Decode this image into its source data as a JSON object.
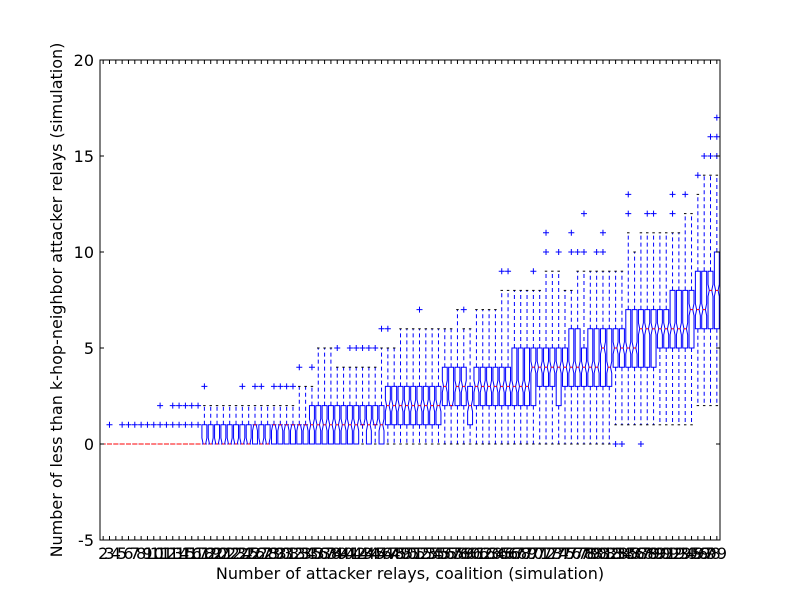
{
  "chart_data": {
    "type": "box",
    "title": "",
    "xlabel": "Number of attacker relays, coalition (simulation)",
    "ylabel": "Number of less than k-hop-neighbor attacker relays (simulation)",
    "ylim": [
      -5,
      20
    ],
    "yticks": [
      -5,
      0,
      5,
      10,
      15,
      20
    ],
    "x_first": 2,
    "x_last": 99,
    "legend": "none",
    "grid": false,
    "notched": true,
    "colors": {
      "box": "#0000ff",
      "median": "#ff0000",
      "flier": "#0000ff",
      "whisker": "#0000ff"
    },
    "boxes": [
      {
        "x": 2,
        "q1": 0,
        "med": 0,
        "q3": 0,
        "lo": 0,
        "hi": 0,
        "fliers": []
      },
      {
        "x": 3,
        "q1": 0,
        "med": 0,
        "q3": 0,
        "lo": 0,
        "hi": 0,
        "fliers": [
          1
        ]
      },
      {
        "x": 4,
        "q1": 0,
        "med": 0,
        "q3": 0,
        "lo": 0,
        "hi": 0,
        "fliers": []
      },
      {
        "x": 5,
        "q1": 0,
        "med": 0,
        "q3": 0,
        "lo": 0,
        "hi": 0,
        "fliers": [
          1
        ]
      },
      {
        "x": 6,
        "q1": 0,
        "med": 0,
        "q3": 0,
        "lo": 0,
        "hi": 0,
        "fliers": [
          1
        ]
      },
      {
        "x": 7,
        "q1": 0,
        "med": 0,
        "q3": 0,
        "lo": 0,
        "hi": 0,
        "fliers": [
          1
        ]
      },
      {
        "x": 8,
        "q1": 0,
        "med": 0,
        "q3": 0,
        "lo": 0,
        "hi": 0,
        "fliers": [
          1
        ]
      },
      {
        "x": 9,
        "q1": 0,
        "med": 0,
        "q3": 0,
        "lo": 0,
        "hi": 0,
        "fliers": [
          1
        ]
      },
      {
        "x": 10,
        "q1": 0,
        "med": 0,
        "q3": 0,
        "lo": 0,
        "hi": 0,
        "fliers": [
          1
        ]
      },
      {
        "x": 11,
        "q1": 0,
        "med": 0,
        "q3": 0,
        "lo": 0,
        "hi": 0,
        "fliers": [
          1,
          2
        ]
      },
      {
        "x": 12,
        "q1": 0,
        "med": 0,
        "q3": 0,
        "lo": 0,
        "hi": 0,
        "fliers": [
          1
        ]
      },
      {
        "x": 13,
        "q1": 0,
        "med": 0,
        "q3": 0,
        "lo": 0,
        "hi": 0,
        "fliers": [
          1,
          2
        ]
      },
      {
        "x": 14,
        "q1": 0,
        "med": 0,
        "q3": 0,
        "lo": 0,
        "hi": 0,
        "fliers": [
          1,
          2
        ]
      },
      {
        "x": 15,
        "q1": 0,
        "med": 0,
        "q3": 0,
        "lo": 0,
        "hi": 0,
        "fliers": [
          1,
          2
        ]
      },
      {
        "x": 16,
        "q1": 0,
        "med": 0,
        "q3": 0,
        "lo": 0,
        "hi": 0,
        "fliers": [
          1,
          2
        ]
      },
      {
        "x": 17,
        "q1": 0,
        "med": 0,
        "q3": 0,
        "lo": 0,
        "hi": 0,
        "fliers": [
          1,
          2
        ]
      },
      {
        "x": 18,
        "q1": 0,
        "med": 0,
        "q3": 1,
        "lo": 0,
        "hi": 2,
        "fliers": [
          3
        ]
      },
      {
        "x": 19,
        "q1": 0,
        "med": 0,
        "q3": 1,
        "lo": 0,
        "hi": 2,
        "fliers": []
      },
      {
        "x": 20,
        "q1": 0,
        "med": 0,
        "q3": 1,
        "lo": 0,
        "hi": 2,
        "fliers": []
      },
      {
        "x": 21,
        "q1": 0,
        "med": 0,
        "q3": 1,
        "lo": 0,
        "hi": 2,
        "fliers": []
      },
      {
        "x": 22,
        "q1": 0,
        "med": 0,
        "q3": 1,
        "lo": 0,
        "hi": 2,
        "fliers": []
      },
      {
        "x": 23,
        "q1": 0,
        "med": 0,
        "q3": 1,
        "lo": 0,
        "hi": 2,
        "fliers": []
      },
      {
        "x": 24,
        "q1": 0,
        "med": 0,
        "q3": 1,
        "lo": 0,
        "hi": 2,
        "fliers": [
          3
        ]
      },
      {
        "x": 25,
        "q1": 0,
        "med": 0,
        "q3": 1,
        "lo": 0,
        "hi": 2,
        "fliers": []
      },
      {
        "x": 26,
        "q1": 0,
        "med": 1,
        "q3": 1,
        "lo": 0,
        "hi": 2,
        "fliers": [
          3
        ]
      },
      {
        "x": 27,
        "q1": 0,
        "med": 0,
        "q3": 1,
        "lo": 0,
        "hi": 2,
        "fliers": [
          3
        ]
      },
      {
        "x": 28,
        "q1": 0,
        "med": 0,
        "q3": 1,
        "lo": 0,
        "hi": 2,
        "fliers": []
      },
      {
        "x": 29,
        "q1": 0,
        "med": 1,
        "q3": 1,
        "lo": 0,
        "hi": 2,
        "fliers": [
          3
        ]
      },
      {
        "x": 30,
        "q1": 0,
        "med": 1,
        "q3": 1,
        "lo": 0,
        "hi": 2,
        "fliers": [
          3
        ]
      },
      {
        "x": 31,
        "q1": 0,
        "med": 1,
        "q3": 1,
        "lo": 0,
        "hi": 2,
        "fliers": [
          3
        ]
      },
      {
        "x": 32,
        "q1": 0,
        "med": 1,
        "q3": 1,
        "lo": 0,
        "hi": 2,
        "fliers": [
          3
        ]
      },
      {
        "x": 33,
        "q1": 0,
        "med": 1,
        "q3": 1,
        "lo": 0,
        "hi": 3,
        "fliers": [
          4
        ]
      },
      {
        "x": 34,
        "q1": 0,
        "med": 1,
        "q3": 1,
        "lo": 0,
        "hi": 3,
        "fliers": []
      },
      {
        "x": 35,
        "q1": 0,
        "med": 1,
        "q3": 2,
        "lo": 0,
        "hi": 3,
        "fliers": [
          4
        ]
      },
      {
        "x": 36,
        "q1": 0,
        "med": 1,
        "q3": 2,
        "lo": 0,
        "hi": 5,
        "fliers": []
      },
      {
        "x": 37,
        "q1": 0,
        "med": 1,
        "q3": 2,
        "lo": 0,
        "hi": 5,
        "fliers": []
      },
      {
        "x": 38,
        "q1": 0,
        "med": 1,
        "q3": 2,
        "lo": 0,
        "hi": 5,
        "fliers": []
      },
      {
        "x": 39,
        "q1": 0,
        "med": 1,
        "q3": 2,
        "lo": 0,
        "hi": 4,
        "fliers": [
          5
        ]
      },
      {
        "x": 40,
        "q1": 0,
        "med": 1,
        "q3": 2,
        "lo": 0,
        "hi": 4,
        "fliers": []
      },
      {
        "x": 41,
        "q1": 0,
        "med": 1,
        "q3": 2,
        "lo": 0,
        "hi": 4,
        "fliers": [
          5
        ]
      },
      {
        "x": 42,
        "q1": 0,
        "med": 1,
        "q3": 2,
        "lo": 0,
        "hi": 4,
        "fliers": [
          5
        ]
      },
      {
        "x": 43,
        "q1": 1,
        "med": 1,
        "q3": 2,
        "lo": 0,
        "hi": 4,
        "fliers": [
          5
        ]
      },
      {
        "x": 44,
        "q1": 0,
        "med": 1,
        "q3": 2,
        "lo": 0,
        "hi": 4,
        "fliers": [
          5
        ]
      },
      {
        "x": 45,
        "q1": 1,
        "med": 1,
        "q3": 2,
        "lo": 0,
        "hi": 4,
        "fliers": [
          5
        ]
      },
      {
        "x": 46,
        "q1": 0,
        "med": 1,
        "q3": 2,
        "lo": 0,
        "hi": 5,
        "fliers": [
          6
        ]
      },
      {
        "x": 47,
        "q1": 1,
        "med": 2,
        "q3": 3,
        "lo": 0,
        "hi": 5,
        "fliers": [
          6
        ]
      },
      {
        "x": 48,
        "q1": 1,
        "med": 2,
        "q3": 3,
        "lo": 0,
        "hi": 5,
        "fliers": []
      },
      {
        "x": 49,
        "q1": 1,
        "med": 2,
        "q3": 3,
        "lo": 0,
        "hi": 6,
        "fliers": []
      },
      {
        "x": 50,
        "q1": 1,
        "med": 2,
        "q3": 3,
        "lo": 0,
        "hi": 6,
        "fliers": []
      },
      {
        "x": 51,
        "q1": 1,
        "med": 2,
        "q3": 3,
        "lo": 0,
        "hi": 6,
        "fliers": []
      },
      {
        "x": 52,
        "q1": 1,
        "med": 2,
        "q3": 3,
        "lo": 0,
        "hi": 6,
        "fliers": [
          7
        ]
      },
      {
        "x": 53,
        "q1": 1,
        "med": 2,
        "q3": 3,
        "lo": 0,
        "hi": 6,
        "fliers": []
      },
      {
        "x": 54,
        "q1": 1,
        "med": 2,
        "q3": 3,
        "lo": 0,
        "hi": 6,
        "fliers": []
      },
      {
        "x": 55,
        "q1": 1,
        "med": 2,
        "q3": 3,
        "lo": 0,
        "hi": 6,
        "fliers": []
      },
      {
        "x": 56,
        "q1": 2,
        "med": 3,
        "q3": 4,
        "lo": 0,
        "hi": 6,
        "fliers": []
      },
      {
        "x": 57,
        "q1": 2,
        "med": 2,
        "q3": 4,
        "lo": 0,
        "hi": 6,
        "fliers": []
      },
      {
        "x": 58,
        "q1": 2,
        "med": 3,
        "q3": 4,
        "lo": 0,
        "hi": 7,
        "fliers": []
      },
      {
        "x": 59,
        "q1": 2,
        "med": 3,
        "q3": 4,
        "lo": 0,
        "hi": 6,
        "fliers": [
          7
        ]
      },
      {
        "x": 60,
        "q1": 1,
        "med": 2,
        "q3": 3,
        "lo": 0,
        "hi": 6,
        "fliers": []
      },
      {
        "x": 61,
        "q1": 2,
        "med": 3,
        "q3": 4,
        "lo": 0,
        "hi": 7,
        "fliers": []
      },
      {
        "x": 62,
        "q1": 2,
        "med": 3,
        "q3": 4,
        "lo": 0,
        "hi": 7,
        "fliers": []
      },
      {
        "x": 63,
        "q1": 2,
        "med": 3,
        "q3": 4,
        "lo": 0,
        "hi": 7,
        "fliers": []
      },
      {
        "x": 64,
        "q1": 2,
        "med": 3,
        "q3": 4,
        "lo": 0,
        "hi": 7,
        "fliers": []
      },
      {
        "x": 65,
        "q1": 2,
        "med": 3,
        "q3": 4,
        "lo": 0,
        "hi": 8,
        "fliers": [
          9
        ]
      },
      {
        "x": 66,
        "q1": 2,
        "med": 3,
        "q3": 4,
        "lo": 0,
        "hi": 8,
        "fliers": [
          9
        ]
      },
      {
        "x": 67,
        "q1": 2,
        "med": 3,
        "q3": 5,
        "lo": 0,
        "hi": 8,
        "fliers": []
      },
      {
        "x": 68,
        "q1": 2,
        "med": 3,
        "q3": 5,
        "lo": 0,
        "hi": 8,
        "fliers": []
      },
      {
        "x": 69,
        "q1": 2,
        "med": 3,
        "q3": 5,
        "lo": 0,
        "hi": 8,
        "fliers": []
      },
      {
        "x": 70,
        "q1": 2,
        "med": 4,
        "q3": 5,
        "lo": 0,
        "hi": 8,
        "fliers": [
          9
        ]
      },
      {
        "x": 71,
        "q1": 3,
        "med": 4,
        "q3": 5,
        "lo": 0,
        "hi": 8,
        "fliers": []
      },
      {
        "x": 72,
        "q1": 3,
        "med": 4,
        "q3": 5,
        "lo": 0,
        "hi": 9,
        "fliers": [
          10,
          11
        ]
      },
      {
        "x": 73,
        "q1": 3,
        "med": 4,
        "q3": 5,
        "lo": 0,
        "hi": 9,
        "fliers": []
      },
      {
        "x": 74,
        "q1": 2,
        "med": 4,
        "q3": 5,
        "lo": 0,
        "hi": 9,
        "fliers": [
          10
        ]
      },
      {
        "x": 75,
        "q1": 3,
        "med": 4,
        "q3": 5,
        "lo": 0,
        "hi": 8,
        "fliers": []
      },
      {
        "x": 76,
        "q1": 3,
        "med": 4,
        "q3": 6,
        "lo": 0,
        "hi": 8,
        "fliers": [
          10,
          11
        ]
      },
      {
        "x": 77,
        "q1": 3,
        "med": 4,
        "q3": 6,
        "lo": 0,
        "hi": 9,
        "fliers": [
          10
        ]
      },
      {
        "x": 78,
        "q1": 3,
        "med": 4,
        "q3": 5,
        "lo": 0,
        "hi": 9,
        "fliers": [
          10,
          12
        ]
      },
      {
        "x": 79,
        "q1": 3,
        "med": 4,
        "q3": 6,
        "lo": 0,
        "hi": 9,
        "fliers": []
      },
      {
        "x": 80,
        "q1": 3,
        "med": 4,
        "q3": 6,
        "lo": 0,
        "hi": 9,
        "fliers": [
          10
        ]
      },
      {
        "x": 81,
        "q1": 3,
        "med": 5,
        "q3": 6,
        "lo": 0,
        "hi": 9,
        "fliers": [
          10,
          11
        ]
      },
      {
        "x": 82,
        "q1": 3,
        "med": 4,
        "q3": 6,
        "lo": 0,
        "hi": 9,
        "fliers": []
      },
      {
        "x": 83,
        "q1": 4,
        "med": 5,
        "q3": 6,
        "lo": 1,
        "hi": 9,
        "fliers": [
          0
        ]
      },
      {
        "x": 84,
        "q1": 4,
        "med": 5,
        "q3": 6,
        "lo": 1,
        "hi": 9,
        "fliers": [
          0
        ]
      },
      {
        "x": 85,
        "q1": 4,
        "med": 5,
        "q3": 7,
        "lo": 1,
        "hi": 11,
        "fliers": [
          12,
          13
        ]
      },
      {
        "x": 86,
        "q1": 4,
        "med": 5,
        "q3": 7,
        "lo": 1,
        "hi": 10,
        "fliers": []
      },
      {
        "x": 87,
        "q1": 4,
        "med": 6,
        "q3": 7,
        "lo": 1,
        "hi": 11,
        "fliers": [
          0
        ]
      },
      {
        "x": 88,
        "q1": 4,
        "med": 6,
        "q3": 7,
        "lo": 1,
        "hi": 11,
        "fliers": [
          12
        ]
      },
      {
        "x": 89,
        "q1": 4,
        "med": 6,
        "q3": 7,
        "lo": 1,
        "hi": 11,
        "fliers": [
          12
        ]
      },
      {
        "x": 90,
        "q1": 5,
        "med": 6,
        "q3": 7,
        "lo": 1,
        "hi": 11,
        "fliers": []
      },
      {
        "x": 91,
        "q1": 5,
        "med": 6,
        "q3": 7,
        "lo": 1,
        "hi": 11,
        "fliers": []
      },
      {
        "x": 92,
        "q1": 5,
        "med": 6,
        "q3": 8,
        "lo": 1,
        "hi": 11,
        "fliers": [
          12,
          13
        ]
      },
      {
        "x": 93,
        "q1": 5,
        "med": 6,
        "q3": 8,
        "lo": 1,
        "hi": 11,
        "fliers": []
      },
      {
        "x": 94,
        "q1": 5,
        "med": 6,
        "q3": 8,
        "lo": 1,
        "hi": 12,
        "fliers": [
          13
        ]
      },
      {
        "x": 95,
        "q1": 5,
        "med": 7,
        "q3": 8,
        "lo": 1,
        "hi": 12,
        "fliers": []
      },
      {
        "x": 96,
        "q1": 6,
        "med": 7,
        "q3": 9,
        "lo": 2,
        "hi": 13,
        "fliers": [
          14
        ]
      },
      {
        "x": 97,
        "q1": 6,
        "med": 7,
        "q3": 9,
        "lo": 2,
        "hi": 14,
        "fliers": [
          15
        ]
      },
      {
        "x": 98,
        "q1": 6,
        "med": 8,
        "q3": 9,
        "lo": 2,
        "hi": 14,
        "fliers": [
          15,
          16
        ]
      },
      {
        "x": 99,
        "q1": 6,
        "med": 8,
        "q3": 10,
        "lo": 2,
        "hi": 14,
        "fliers": [
          15,
          16,
          17
        ]
      }
    ]
  }
}
